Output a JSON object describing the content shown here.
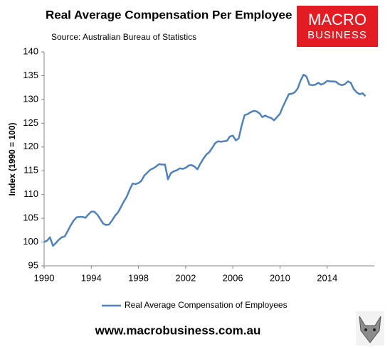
{
  "chart_data": {
    "type": "line",
    "title": "Real Average Compensation Per Employee",
    "subtitle": "Source: Australian Bureau of Statistics",
    "y_label": "Index (1990 = 100)",
    "x": [
      1990,
      1990.25,
      1990.5,
      1990.75,
      1991,
      1991.25,
      1991.5,
      1991.75,
      1992,
      1992.25,
      1992.5,
      1992.75,
      1993,
      1993.25,
      1993.5,
      1993.75,
      1994,
      1994.25,
      1994.5,
      1994.75,
      1995,
      1995.25,
      1995.5,
      1995.75,
      1996,
      1996.25,
      1996.5,
      1996.75,
      1997,
      1997.25,
      1997.5,
      1997.75,
      1998,
      1998.25,
      1998.5,
      1998.75,
      1999,
      1999.25,
      1999.5,
      1999.75,
      2000,
      2000.25,
      2000.5,
      2000.75,
      2001,
      2001.25,
      2001.5,
      2001.75,
      2002,
      2002.25,
      2002.5,
      2002.75,
      2003,
      2003.25,
      2003.5,
      2003.75,
      2004,
      2004.25,
      2004.5,
      2004.75,
      2005,
      2005.25,
      2005.5,
      2005.75,
      2006,
      2006.25,
      2006.5,
      2006.75,
      2007,
      2007.25,
      2007.5,
      2007.75,
      2008,
      2008.25,
      2008.5,
      2008.75,
      2009,
      2009.25,
      2009.5,
      2009.75,
      2010,
      2010.25,
      2010.5,
      2010.75,
      2011,
      2011.25,
      2011.5,
      2011.75,
      2012,
      2012.25,
      2012.5,
      2012.75,
      2013,
      2013.25,
      2013.5,
      2013.75,
      2014,
      2014.25,
      2014.5,
      2014.75,
      2015,
      2015.25,
      2015.5,
      2015.75,
      2016,
      2016.25,
      2016.5,
      2016.75,
      2017,
      2017.25
    ],
    "series": [
      {
        "name": "Real Average Compensation of Employees",
        "color": "#4f81bd",
        "values": [
          100,
          100.3,
          101,
          99.2,
          99.8,
          100.5,
          101,
          101.2,
          102.3,
          103.5,
          104.5,
          105.2,
          105.3,
          105.3,
          105.1,
          105.8,
          106.4,
          106.4,
          105.8,
          104.9,
          103.9,
          103.6,
          103.7,
          104.5,
          105.5,
          106.2,
          107.3,
          108.5,
          109.5,
          111,
          112.3,
          112.2,
          112.4,
          112.9,
          114,
          114.6,
          115.2,
          115.5,
          115.9,
          116.4,
          116.3,
          116.3,
          113.2,
          114.5,
          114.9,
          115.1,
          115.5,
          115.4,
          115.6,
          116.1,
          116.2,
          115.9,
          115.3,
          116.5,
          117.5,
          118.4,
          118.9,
          119.8,
          120.8,
          121.2,
          121.1,
          121.2,
          121.3,
          122.2,
          122.4,
          121.4,
          121.8,
          124.5,
          126.7,
          126.9,
          127.3,
          127.6,
          127.5,
          127.1,
          126.3,
          126.6,
          126.3,
          126.1,
          125.6,
          126.3,
          127,
          128.5,
          129.8,
          131.1,
          131.2,
          131.5,
          132.3,
          134,
          135.2,
          134.8,
          133.1,
          133,
          133.1,
          133.5,
          133.1,
          133.4,
          133.9,
          133.8,
          133.8,
          133.7,
          133.2,
          133,
          133.2,
          133.8,
          133.5,
          132.2,
          131.5,
          131.1,
          131.3,
          130.7
        ]
      }
    ],
    "xlim": [
      1990,
      2018
    ],
    "xticks": [
      1990,
      1994,
      1998,
      2002,
      2006,
      2010,
      2014
    ],
    "ylim": [
      95,
      140
    ],
    "yticks": [
      95,
      100,
      105,
      110,
      115,
      120,
      125,
      130,
      135,
      140
    ],
    "grid": false,
    "legend": "bottom"
  },
  "logo": {
    "line1": "MACRO",
    "line2": "BUSINESS"
  },
  "footer": {
    "url": "www.macrobusiness.com.au"
  }
}
